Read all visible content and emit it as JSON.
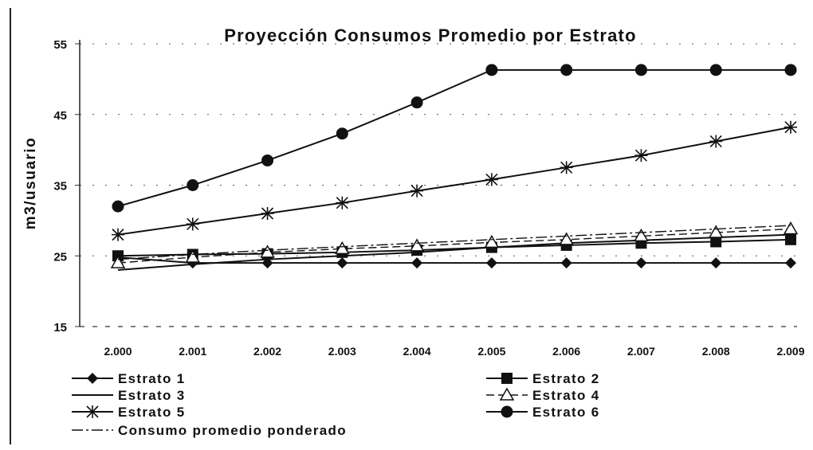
{
  "chart_data": {
    "type": "line",
    "title": "Proyección Consumos Promedio por Estrato",
    "xlabel": "",
    "ylabel": "m3/usuario",
    "categories": [
      "2.000",
      "2.001",
      "2.002",
      "2.003",
      "2.004",
      "2.005",
      "2.006",
      "2.007",
      "2.008",
      "2.009"
    ],
    "ylim": [
      15,
      55
    ],
    "yticks": [
      15,
      25,
      35,
      45,
      55
    ],
    "grid": "dashed-horizontal",
    "legend_position": "bottom",
    "series": [
      {
        "name": "Estrato 1",
        "marker": "diamond",
        "style": "solid",
        "color": "#111111",
        "values": [
          24.8,
          24.0,
          24.0,
          24.0,
          24.0,
          24.0,
          24.0,
          24.0,
          24.0,
          24.0
        ]
      },
      {
        "name": "Estrato 2",
        "marker": "square",
        "style": "solid",
        "color": "#111111",
        "values": [
          25.0,
          25.2,
          25.3,
          25.5,
          25.8,
          26.2,
          26.5,
          26.8,
          27.0,
          27.3
        ]
      },
      {
        "name": "Estrato 3",
        "marker": "none",
        "style": "solid",
        "color": "#111111",
        "values": [
          23.0,
          23.8,
          24.5,
          25.0,
          25.5,
          26.2,
          26.8,
          27.2,
          27.6,
          28.0
        ]
      },
      {
        "name": "Estrato 4",
        "marker": "triangle",
        "style": "dashed",
        "color": "#111111",
        "values": [
          24.0,
          24.8,
          25.5,
          26.0,
          26.4,
          26.9,
          27.3,
          27.8,
          28.3,
          28.8
        ]
      },
      {
        "name": "Estrato 5",
        "marker": "star",
        "style": "solid",
        "color": "#111111",
        "values": [
          28.0,
          29.5,
          31.0,
          32.5,
          34.2,
          35.8,
          37.5,
          39.2,
          41.2,
          43.2
        ]
      },
      {
        "name": "Estrato 6",
        "marker": "circle",
        "style": "solid",
        "color": "#111111",
        "values": [
          32.0,
          35.0,
          38.5,
          42.3,
          46.7,
          51.3,
          51.3,
          51.3,
          51.3,
          51.3
        ]
      },
      {
        "name": "Consumo promedio ponderado",
        "marker": "none",
        "style": "dashdot",
        "color": "#111111",
        "values": [
          24.5,
          25.2,
          25.8,
          26.3,
          26.8,
          27.3,
          27.8,
          28.3,
          28.8,
          29.3
        ]
      }
    ]
  }
}
